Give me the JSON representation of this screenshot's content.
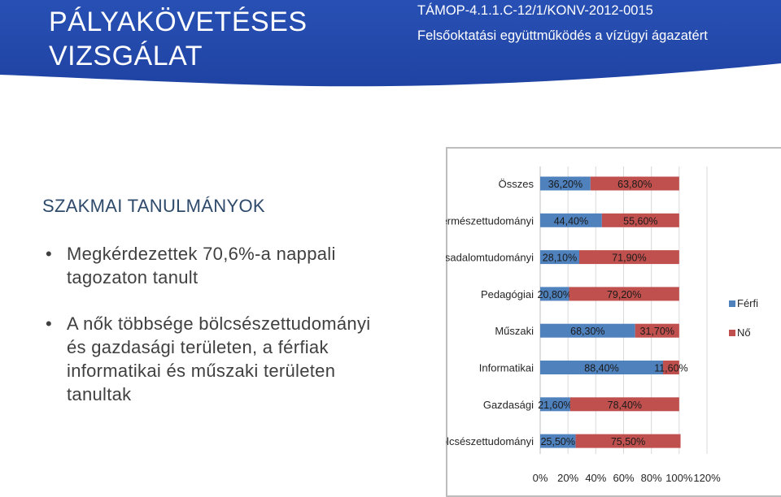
{
  "header": {
    "title_line1": "PÁLYAKÖVETÉSES",
    "title_line2": "VIZSGÁLAT",
    "project_code": "TÁMOP-4.1.1.C-12/1/KONV-2012-0015",
    "project_subtitle": "Felsőoktatási együttműködés a vízügyi ágazatért",
    "colors": {
      "band": "#2850b4",
      "text": "#ffffff"
    }
  },
  "content": {
    "section_title": "SZAKMAI TANULMÁNYOK",
    "bullets": [
      {
        "marker": "•",
        "lines": [
          "Megkérdezettek 70,6%-a nappali",
          "tagozaton tanult"
        ]
      },
      {
        "marker": "•",
        "lines": [
          "A nők többsége bölcsészettudományi",
          "és gazdasági területen, a férfiak",
          "informatikai és műszaki területen",
          "tanultak"
        ]
      }
    ]
  },
  "chart_data": {
    "type": "bar",
    "orientation": "horizontal",
    "stacked": true,
    "categories": [
      "Összes",
      "Természettudományi",
      "Társadalomtudományi",
      "Pedagógiai",
      "Műszaki",
      "Informatikai",
      "Gazdasági",
      "Bölcsészettudományi"
    ],
    "series": [
      {
        "name": "Férfi",
        "color": "#4f81bd",
        "values": [
          36.2,
          44.4,
          28.1,
          20.8,
          68.3,
          88.4,
          21.6,
          25.5
        ],
        "labels": [
          "36,20%",
          "44,40%",
          "28,10%",
          "20,80%",
          "68,30%",
          "88,40%",
          "21,60%",
          "25,50%"
        ]
      },
      {
        "name": "Nő",
        "color": "#c0504d",
        "values": [
          63.8,
          55.6,
          71.9,
          79.2,
          31.7,
          11.6,
          78.4,
          75.5
        ],
        "labels": [
          "63,80%",
          "55,60%",
          "71,90%",
          "79,20%",
          "31,70%",
          "11,60%",
          "78,40%",
          "75,50%"
        ]
      }
    ],
    "xlim": [
      0,
      120
    ],
    "xticks": [
      "0%",
      "20%",
      "40%",
      "60%",
      "80%",
      "100%",
      "120%"
    ],
    "grid": true,
    "legend": "right"
  }
}
